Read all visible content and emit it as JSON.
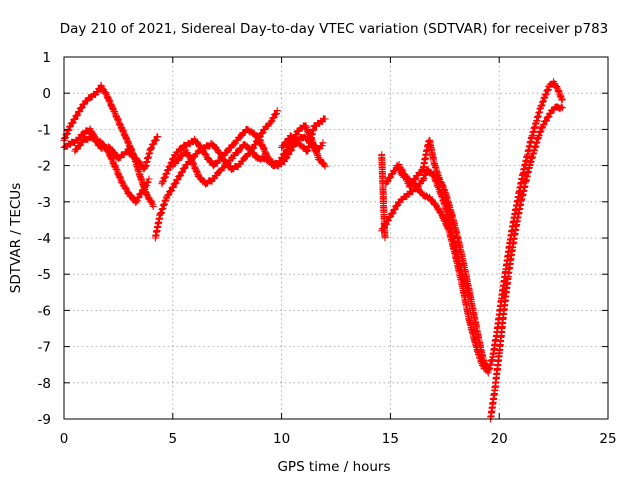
{
  "colors": {
    "series": "#ff0000",
    "grid": "#a0a0a0",
    "axis": "#000000",
    "background": "#ffffff"
  },
  "chart_data": {
    "type": "scatter",
    "marker": "plus",
    "title": "Day 210 of 2021, Sidereal Day-to-day VTEC variation (SDTVAR) for receiver p783",
    "xlabel": "GPS time / hours",
    "ylabel": "SDTVAR / TECUs",
    "xlim": [
      0,
      25
    ],
    "ylim": [
      -9,
      1
    ],
    "xticks": [
      0,
      5,
      10,
      15,
      20,
      25
    ],
    "yticks": [
      1,
      0,
      -1,
      -2,
      -3,
      -4,
      -5,
      -6,
      -7,
      -8,
      -9
    ],
    "grid": true,
    "legend": "none",
    "series": [
      {
        "segments": [
          [
            [
              0.0,
              -1.3
            ],
            [
              0.3,
              -0.9
            ],
            [
              0.6,
              -0.6
            ],
            [
              0.9,
              -0.3
            ],
            [
              1.2,
              -0.1
            ],
            [
              1.5,
              0.0
            ],
            [
              1.7,
              0.2
            ],
            [
              2.0,
              -0.1
            ],
            [
              2.3,
              -0.5
            ],
            [
              2.6,
              -0.9
            ],
            [
              2.9,
              -1.3
            ],
            [
              3.2,
              -1.7
            ],
            [
              3.5,
              -2.3
            ],
            [
              3.8,
              -2.8
            ],
            [
              4.1,
              -3.1
            ]
          ],
          [
            [
              0.0,
              -1.5
            ],
            [
              0.3,
              -1.4
            ],
            [
              0.6,
              -1.3
            ],
            [
              0.9,
              -1.1
            ],
            [
              1.2,
              -1.0
            ],
            [
              1.5,
              -1.3
            ],
            [
              1.8,
              -1.4
            ],
            [
              2.1,
              -1.7
            ],
            [
              2.4,
              -2.1
            ],
            [
              2.7,
              -2.5
            ],
            [
              3.0,
              -2.8
            ],
            [
              3.3,
              -3.0
            ],
            [
              3.6,
              -2.7
            ],
            [
              3.9,
              -2.4
            ]
          ],
          [
            [
              0.5,
              -1.6
            ],
            [
              0.9,
              -1.3
            ],
            [
              1.3,
              -1.2
            ],
            [
              1.7,
              -1.5
            ],
            [
              2.1,
              -1.5
            ],
            [
              2.5,
              -1.8
            ],
            [
              2.9,
              -1.6
            ],
            [
              3.3,
              -1.8
            ],
            [
              3.7,
              -2.1
            ],
            [
              4.0,
              -1.5
            ],
            [
              4.3,
              -1.2
            ]
          ],
          [
            [
              4.2,
              -4.0
            ],
            [
              4.4,
              -3.4
            ],
            [
              4.7,
              -2.9
            ],
            [
              5.0,
              -2.6
            ],
            [
              5.3,
              -2.3
            ],
            [
              5.6,
              -2.0
            ],
            [
              5.9,
              -1.8
            ],
            [
              6.2,
              -1.6
            ],
            [
              6.5,
              -1.5
            ],
            [
              6.8,
              -1.4
            ],
            [
              7.1,
              -1.6
            ],
            [
              7.4,
              -1.9
            ],
            [
              7.7,
              -2.1
            ],
            [
              8.0,
              -2.0
            ],
            [
              8.3,
              -1.8
            ],
            [
              8.6,
              -1.6
            ],
            [
              8.9,
              -1.3
            ],
            [
              9.2,
              -1.0
            ],
            [
              9.5,
              -0.8
            ],
            [
              9.8,
              -0.5
            ]
          ],
          [
            [
              4.5,
              -2.5
            ],
            [
              4.8,
              -2.1
            ],
            [
              5.1,
              -1.7
            ],
            [
              5.4,
              -1.5
            ],
            [
              5.7,
              -1.4
            ],
            [
              6.0,
              -1.3
            ],
            [
              6.3,
              -1.5
            ],
            [
              6.6,
              -1.8
            ],
            [
              6.9,
              -2.0
            ],
            [
              7.2,
              -1.8
            ],
            [
              7.5,
              -1.6
            ],
            [
              7.8,
              -1.4
            ],
            [
              8.1,
              -1.2
            ],
            [
              8.4,
              -1.0
            ],
            [
              8.7,
              -1.1
            ],
            [
              9.0,
              -1.3
            ],
            [
              9.3,
              -1.7
            ],
            [
              9.6,
              -2.0
            ],
            [
              9.9,
              -1.9
            ],
            [
              10.2,
              -1.6
            ],
            [
              10.5,
              -1.3
            ],
            [
              10.8,
              -1.0
            ],
            [
              11.1,
              -0.9
            ],
            [
              11.4,
              -1.3
            ],
            [
              11.7,
              -1.8
            ],
            [
              12.0,
              -2.0
            ]
          ],
          [
            [
              5.0,
              -2.0
            ],
            [
              5.3,
              -1.8
            ],
            [
              5.6,
              -1.6
            ],
            [
              5.9,
              -1.9
            ],
            [
              6.2,
              -2.3
            ],
            [
              6.5,
              -2.5
            ],
            [
              6.8,
              -2.4
            ],
            [
              7.1,
              -2.2
            ],
            [
              7.4,
              -2.0
            ],
            [
              7.7,
              -1.8
            ],
            [
              8.0,
              -1.6
            ],
            [
              8.3,
              -1.4
            ],
            [
              8.6,
              -1.6
            ],
            [
              8.9,
              -1.8
            ],
            [
              9.2,
              -1.8
            ],
            [
              9.5,
              -1.9
            ],
            [
              9.8,
              -2.0
            ],
            [
              10.1,
              -1.9
            ],
            [
              10.4,
              -1.6
            ],
            [
              10.7,
              -1.3
            ],
            [
              11.0,
              -1.2
            ],
            [
              11.3,
              -1.3
            ],
            [
              11.6,
              -1.6
            ],
            [
              11.9,
              -1.4
            ]
          ],
          [
            [
              10.0,
              -1.5
            ],
            [
              10.4,
              -1.2
            ],
            [
              10.8,
              -1.4
            ],
            [
              11.2,
              -1.6
            ],
            [
              11.5,
              -0.9
            ],
            [
              11.8,
              -0.8
            ],
            [
              12.0,
              -0.7
            ]
          ],
          [
            [
              14.6,
              -1.7
            ],
            [
              14.65,
              -2.5
            ],
            [
              14.7,
              -3.3
            ],
            [
              14.75,
              -4.0
            ]
          ],
          [
            [
              14.6,
              -3.8
            ],
            [
              15.0,
              -3.4
            ],
            [
              15.4,
              -3.0
            ],
            [
              15.8,
              -2.8
            ],
            [
              16.2,
              -2.6
            ],
            [
              16.5,
              -2.4
            ],
            [
              16.7,
              -2.1
            ],
            [
              17.0,
              -2.3
            ],
            [
              17.2,
              -2.6
            ],
            [
              17.4,
              -2.9
            ],
            [
              17.6,
              -3.3
            ],
            [
              17.8,
              -3.8
            ],
            [
              18.0,
              -4.3
            ],
            [
              18.2,
              -4.8
            ],
            [
              18.4,
              -5.2
            ],
            [
              18.6,
              -5.6
            ]
          ],
          [
            [
              14.8,
              -2.5
            ],
            [
              15.1,
              -2.2
            ],
            [
              15.4,
              -2.0
            ],
            [
              15.7,
              -2.3
            ],
            [
              15.9,
              -2.6
            ],
            [
              16.2,
              -2.3
            ],
            [
              16.5,
              -2.1
            ],
            [
              16.7,
              -1.5
            ],
            [
              16.8,
              -1.3
            ],
            [
              17.0,
              -1.9
            ],
            [
              17.2,
              -2.3
            ],
            [
              17.5,
              -2.7
            ],
            [
              17.8,
              -3.3
            ],
            [
              18.1,
              -4.0
            ],
            [
              18.4,
              -4.8
            ],
            [
              18.7,
              -5.7
            ],
            [
              19.0,
              -6.6
            ],
            [
              19.2,
              -7.2
            ],
            [
              19.4,
              -7.6
            ]
          ],
          [
            [
              15.3,
              -2.0
            ],
            [
              15.6,
              -2.3
            ],
            [
              15.9,
              -2.4
            ],
            [
              16.2,
              -2.6
            ],
            [
              16.5,
              -2.8
            ],
            [
              16.8,
              -2.9
            ],
            [
              17.1,
              -3.1
            ],
            [
              17.4,
              -3.4
            ],
            [
              17.7,
              -3.8
            ],
            [
              18.0,
              -4.5
            ],
            [
              18.3,
              -5.3
            ],
            [
              18.6,
              -6.2
            ],
            [
              18.9,
              -6.9
            ],
            [
              19.1,
              -7.3
            ],
            [
              19.3,
              -7.6
            ]
          ],
          [
            [
              19.3,
              -7.5
            ],
            [
              19.5,
              -7.7
            ],
            [
              19.7,
              -7.3
            ],
            [
              19.9,
              -6.6
            ],
            [
              20.1,
              -5.7
            ],
            [
              20.3,
              -4.9
            ],
            [
              20.5,
              -4.1
            ],
            [
              20.7,
              -3.4
            ],
            [
              20.9,
              -2.8
            ],
            [
              21.1,
              -2.2
            ],
            [
              21.3,
              -1.7
            ],
            [
              21.5,
              -1.2
            ],
            [
              21.7,
              -0.8
            ],
            [
              21.9,
              -0.4
            ],
            [
              22.1,
              -0.1
            ],
            [
              22.3,
              0.2
            ],
            [
              22.5,
              0.3
            ],
            [
              22.7,
              0.1
            ],
            [
              22.9,
              -0.2
            ]
          ],
          [
            [
              19.6,
              -9.0
            ],
            [
              19.8,
              -8.2
            ],
            [
              20.0,
              -7.2
            ],
            [
              20.2,
              -6.1
            ],
            [
              20.4,
              -5.1
            ],
            [
              20.6,
              -4.3
            ],
            [
              20.8,
              -3.6
            ],
            [
              21.0,
              -3.0
            ],
            [
              21.2,
              -2.5
            ],
            [
              21.4,
              -2.0
            ],
            [
              21.6,
              -1.6
            ],
            [
              21.8,
              -1.2
            ],
            [
              22.0,
              -0.9
            ],
            [
              22.2,
              -0.7
            ],
            [
              22.4,
              -0.5
            ],
            [
              22.6,
              -0.4
            ],
            [
              22.9,
              -0.4
            ]
          ]
        ]
      }
    ]
  }
}
